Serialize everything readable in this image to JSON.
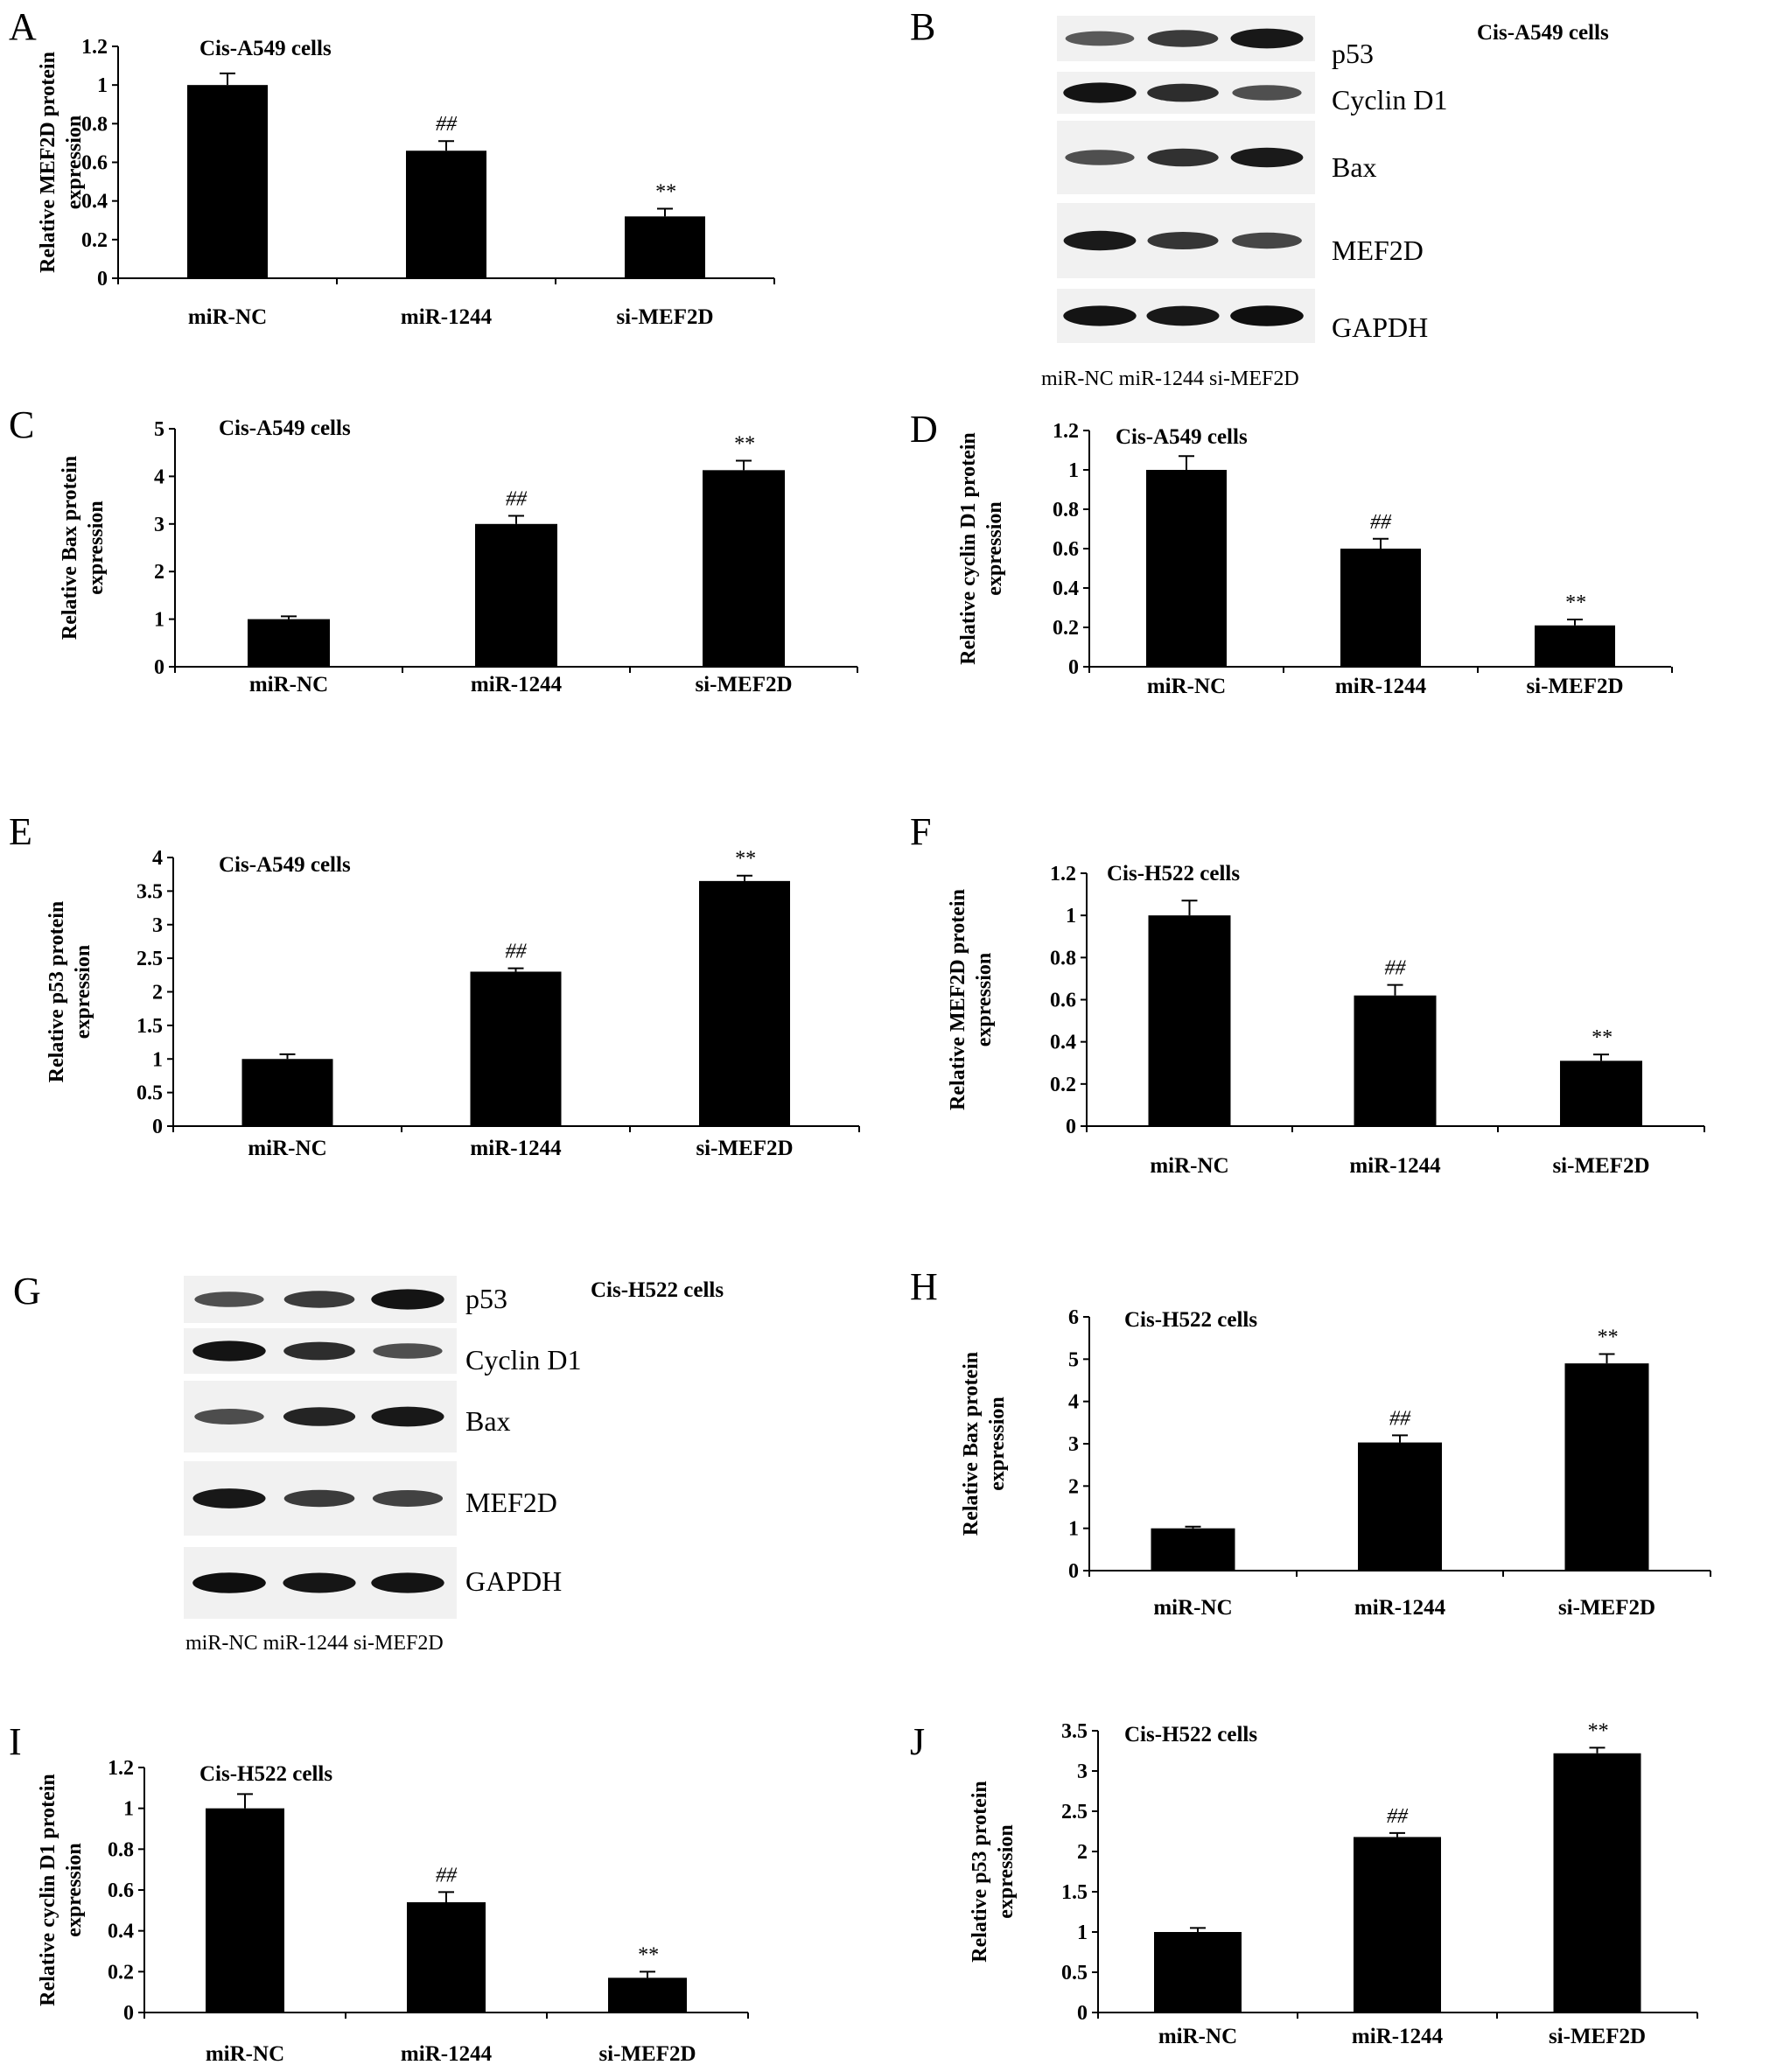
{
  "chart_data": [
    {
      "panel": "A",
      "type": "bar",
      "cell_line": "Cis-A549 cells",
      "ylabel_line1": "Relative MEF2D protein",
      "ylabel_line2": "expression",
      "categories": [
        "miR-NC",
        "miR-1244",
        "si-MEF2D"
      ],
      "values": [
        1.0,
        0.66,
        0.32
      ],
      "errors": [
        0.06,
        0.05,
        0.04
      ],
      "significance": [
        "",
        "##",
        "**"
      ],
      "ylim": [
        0,
        1.2
      ],
      "yticks": [
        0,
        0.2,
        0.4,
        0.6,
        0.8,
        1,
        1.2
      ],
      "xlabel": ""
    },
    {
      "panel": "C",
      "type": "bar",
      "cell_line": "Cis-A549 cells",
      "ylabel_line1": "Relative Bax protein",
      "ylabel_line2": "expression",
      "categories": [
        "miR-NC",
        "miR-1244",
        "si-MEF2D"
      ],
      "values": [
        1.0,
        3.0,
        4.13
      ],
      "errors": [
        0.06,
        0.17,
        0.2
      ],
      "significance": [
        "",
        "##",
        "**"
      ],
      "ylim": [
        0,
        5
      ],
      "yticks": [
        0,
        1,
        2,
        3,
        4,
        5
      ],
      "xlabel": ""
    },
    {
      "panel": "D",
      "type": "bar",
      "cell_line": "Cis-A549 cells",
      "ylabel_line1": "Relative cyclin D1 protein",
      "ylabel_line2": "expression",
      "categories": [
        "miR-NC",
        "miR-1244",
        "si-MEF2D"
      ],
      "values": [
        1.0,
        0.6,
        0.21
      ],
      "errors": [
        0.07,
        0.05,
        0.03
      ],
      "significance": [
        "",
        "##",
        "**"
      ],
      "ylim": [
        0,
        1.2
      ],
      "yticks": [
        0,
        0.2,
        0.4,
        0.6,
        0.8,
        1,
        1.2
      ],
      "xlabel": ""
    },
    {
      "panel": "E",
      "type": "bar",
      "cell_line": "Cis-A549 cells",
      "ylabel_line1": "Relative p53 protein",
      "ylabel_line2": "expression",
      "categories": [
        "miR-NC",
        "miR-1244",
        "si-MEF2D"
      ],
      "values": [
        1.0,
        2.3,
        3.65
      ],
      "errors": [
        0.07,
        0.05,
        0.08
      ],
      "significance": [
        "",
        "##",
        "**"
      ],
      "ylim": [
        0,
        4
      ],
      "yticks": [
        0,
        0.5,
        1,
        1.5,
        2,
        2.5,
        3,
        3.5,
        4
      ],
      "xlabel": ""
    },
    {
      "panel": "F",
      "type": "bar",
      "cell_line": "Cis-H522 cells",
      "ylabel_line1": "Relative MEF2D protein",
      "ylabel_line2": "expression",
      "categories": [
        "miR-NC",
        "miR-1244",
        "si-MEF2D"
      ],
      "values": [
        1.0,
        0.62,
        0.31
      ],
      "errors": [
        0.07,
        0.05,
        0.03
      ],
      "significance": [
        "",
        "##",
        "**"
      ],
      "ylim": [
        0,
        1.2
      ],
      "yticks": [
        0,
        0.2,
        0.4,
        0.6,
        0.8,
        1,
        1.2
      ],
      "xlabel": ""
    },
    {
      "panel": "H",
      "type": "bar",
      "cell_line": "Cis-H522 cells",
      "ylabel_line1": "Relative Bax protein",
      "ylabel_line2": "expression",
      "categories": [
        "miR-NC",
        "miR-1244",
        "si-MEF2D"
      ],
      "values": [
        1.0,
        3.03,
        4.9
      ],
      "errors": [
        0.04,
        0.17,
        0.22
      ],
      "significance": [
        "",
        "##",
        "**"
      ],
      "ylim": [
        0,
        6
      ],
      "yticks": [
        0,
        1,
        2,
        3,
        4,
        5,
        6
      ],
      "xlabel": ""
    },
    {
      "panel": "I",
      "type": "bar",
      "cell_line": "Cis-H522 cells",
      "ylabel_line1": "Relative cyclin D1 protein",
      "ylabel_line2": "expression",
      "categories": [
        "miR-NC",
        "miR-1244",
        "si-MEF2D"
      ],
      "values": [
        1.0,
        0.54,
        0.17
      ],
      "errors": [
        0.07,
        0.05,
        0.03
      ],
      "significance": [
        "",
        "##",
        "**"
      ],
      "ylim": [
        0,
        1.2
      ],
      "yticks": [
        0,
        0.2,
        0.4,
        0.6,
        0.8,
        1,
        1.2
      ],
      "xlabel": ""
    },
    {
      "panel": "J",
      "type": "bar",
      "cell_line": "Cis-H522 cells",
      "ylabel_line1": "Relative p53 protein",
      "ylabel_line2": "expression",
      "categories": [
        "miR-NC",
        "miR-1244",
        "si-MEF2D"
      ],
      "values": [
        1.0,
        2.18,
        3.22
      ],
      "errors": [
        0.05,
        0.05,
        0.07
      ],
      "significance": [
        "",
        "##",
        "**"
      ],
      "ylim": [
        0,
        3.5
      ],
      "yticks": [
        0,
        0.5,
        1,
        1.5,
        2,
        2.5,
        3,
        3.5
      ],
      "xlabel": ""
    }
  ],
  "blots": [
    {
      "panel": "B",
      "cell_line": "Cis-A549 cells",
      "lanes_label": "miR-NC miR-1244 si-MEF2D",
      "proteins": [
        {
          "name": "p53",
          "intensity": [
            0.55,
            0.72,
            0.92
          ]
        },
        {
          "name": "Cyclin D1",
          "intensity": [
            0.95,
            0.8,
            0.6
          ]
        },
        {
          "name": "Bax",
          "intensity": [
            0.6,
            0.78,
            0.9
          ]
        },
        {
          "name": "MEF2D",
          "intensity": [
            0.9,
            0.75,
            0.65
          ]
        },
        {
          "name": "GAPDH",
          "intensity": [
            0.95,
            0.92,
            0.97
          ]
        }
      ]
    },
    {
      "panel": "G",
      "cell_line": "Cis-H522 cells",
      "lanes_label": "miR-NC miR-1244 si-MEF2D",
      "proteins": [
        {
          "name": "p53",
          "intensity": [
            0.6,
            0.72,
            0.95
          ]
        },
        {
          "name": "Cyclin D1",
          "intensity": [
            0.95,
            0.8,
            0.6
          ]
        },
        {
          "name": "Bax",
          "intensity": [
            0.62,
            0.85,
            0.92
          ]
        },
        {
          "name": "MEF2D",
          "intensity": [
            0.92,
            0.72,
            0.68
          ]
        },
        {
          "name": "GAPDH",
          "intensity": [
            0.97,
            0.93,
            0.95
          ]
        }
      ]
    }
  ],
  "colors": {
    "bar": "#000000",
    "axis": "#000000",
    "blot_bg": "#f1f1f1",
    "band": "#0a0a0a"
  }
}
